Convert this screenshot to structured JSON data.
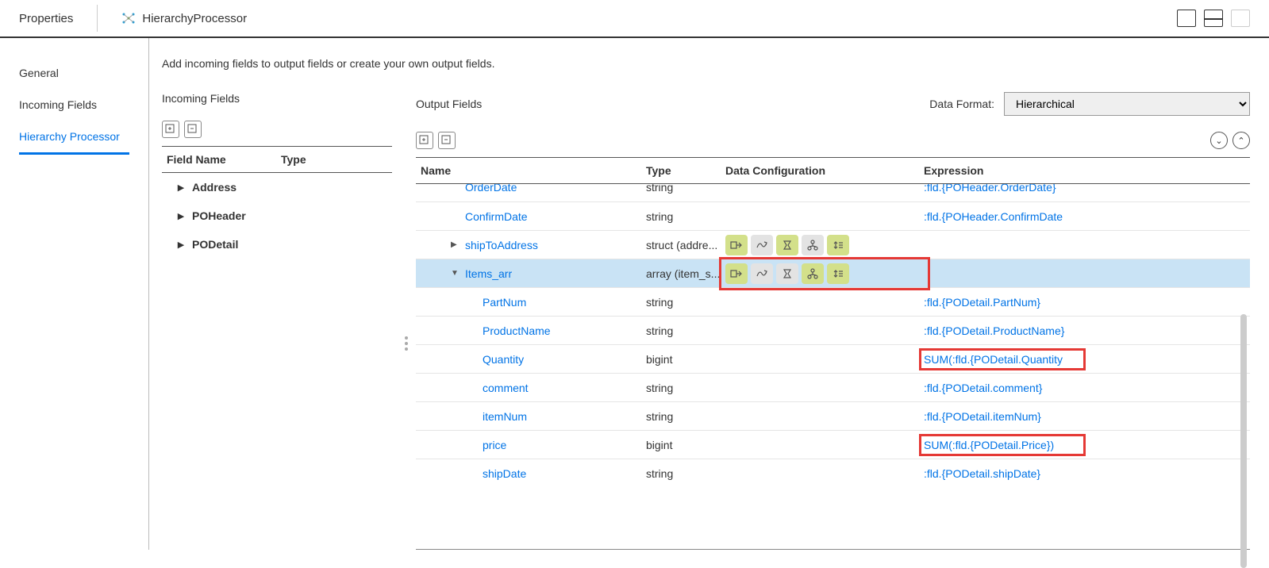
{
  "header": {
    "tab": "Properties",
    "processor": "HierarchyProcessor"
  },
  "sidebar": {
    "items": [
      {
        "label": "General"
      },
      {
        "label": "Incoming Fields"
      },
      {
        "label": "Hierarchy Processor",
        "active": true
      }
    ]
  },
  "description": "Add incoming fields to output fields or create your own output fields.",
  "incoming": {
    "title": "Incoming Fields",
    "columns": {
      "name": "Field Name",
      "type": "Type"
    },
    "rows": [
      {
        "label": "Address"
      },
      {
        "label": "POHeader"
      },
      {
        "label": "PODetail"
      }
    ]
  },
  "output": {
    "title": "Output Fields",
    "dataFormatLabel": "Data Format:",
    "dataFormatValue": "Hierarchical",
    "columns": {
      "name": "Name",
      "type": "Type",
      "config": "Data Configuration",
      "expr": "Expression"
    },
    "rows": [
      {
        "indent": 2,
        "name": "OrderDate",
        "type": "string",
        "expr": ":fld.{POHeader.OrderDate}",
        "clipped": true
      },
      {
        "indent": 2,
        "name": "ConfirmDate",
        "type": "string",
        "expr": ":fld.{POHeader.ConfirmDate"
      },
      {
        "indent": 2,
        "name": "shipToAddress",
        "type": "struct (addre...",
        "expander": "▶",
        "icons": [
          [
            "→",
            "lime"
          ],
          [
            "⤳",
            "grey"
          ],
          [
            "⧩",
            "lime"
          ],
          [
            "⚷",
            "grey"
          ],
          [
            "⇕",
            "lime"
          ]
        ]
      },
      {
        "indent": 2,
        "name": "Items_arr",
        "type": "array (item_s...",
        "expander": "▼",
        "selected": true,
        "icons": [
          [
            "→",
            "lime"
          ],
          [
            "⤳",
            "grey"
          ],
          [
            "⧩",
            "grey"
          ],
          [
            "⚷",
            "lime"
          ],
          [
            "⇕",
            "lime"
          ]
        ],
        "highlightIcons": true
      },
      {
        "indent": 3,
        "name": "PartNum",
        "type": "string",
        "expr": ":fld.{PODetail.PartNum}"
      },
      {
        "indent": 3,
        "name": "ProductName",
        "type": "string",
        "expr": ":fld.{PODetail.ProductName}"
      },
      {
        "indent": 3,
        "name": "Quantity",
        "type": "bigint",
        "expr": "SUM(:fld.{PODetail.Quantity",
        "highlightExpr": true
      },
      {
        "indent": 3,
        "name": "comment",
        "type": "string",
        "expr": ":fld.{PODetail.comment}"
      },
      {
        "indent": 3,
        "name": "itemNum",
        "type": "string",
        "expr": ":fld.{PODetail.itemNum}"
      },
      {
        "indent": 3,
        "name": "price",
        "type": "bigint",
        "expr": "SUM(:fld.{PODetail.Price})",
        "highlightExpr": true
      },
      {
        "indent": 3,
        "name": "shipDate",
        "type": "string",
        "expr": ":fld.{PODetail.shipDate}"
      }
    ]
  },
  "colors": {
    "link": "#0073e6",
    "lime": "#d3e08a",
    "grey": "#e3e3e3",
    "highlight": "#e53935",
    "selected": "#c9e3f5"
  }
}
